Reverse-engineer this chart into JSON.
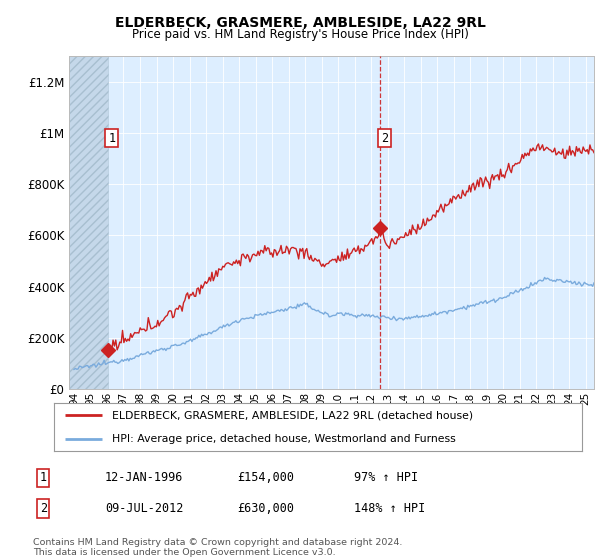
{
  "title": "ELDERBECK, GRASMERE, AMBLESIDE, LA22 9RL",
  "subtitle": "Price paid vs. HM Land Registry's House Price Index (HPI)",
  "legend_line1": "ELDERBECK, GRASMERE, AMBLESIDE, LA22 9RL (detached house)",
  "legend_line2": "HPI: Average price, detached house, Westmorland and Furness",
  "annotation1_label": "1",
  "annotation1_date": "12-JAN-1996",
  "annotation1_price": "£154,000",
  "annotation1_hpi": "97% ↑ HPI",
  "annotation2_label": "2",
  "annotation2_date": "09-JUL-2012",
  "annotation2_price": "£630,000",
  "annotation2_hpi": "148% ↑ HPI",
  "footer": "Contains HM Land Registry data © Crown copyright and database right 2024.\nThis data is licensed under the Open Government Licence v3.0.",
  "sale_color": "#cc2222",
  "hpi_color": "#7aabdd",
  "background_plot": "#ddeeff",
  "xlim_left": 1993.7,
  "xlim_right": 2025.5,
  "ylim_bottom": 0,
  "ylim_top": 1300000,
  "sale1_year": 1996.04,
  "sale1_price": 154000,
  "sale2_year": 2012.52,
  "sale2_price": 630000
}
